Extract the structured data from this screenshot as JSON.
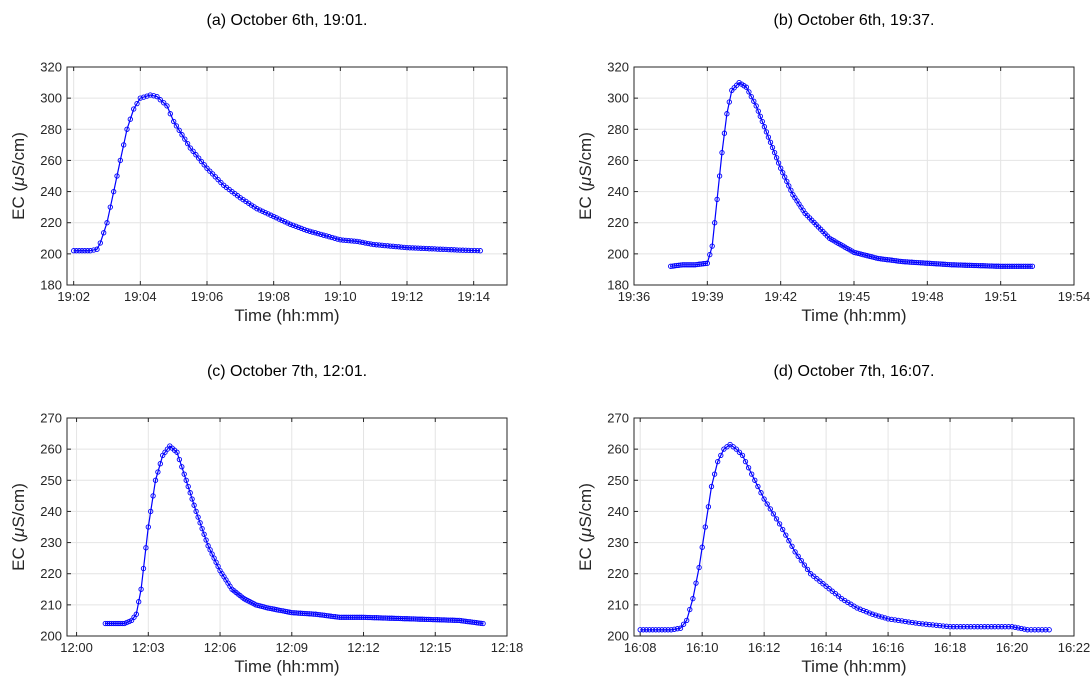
{
  "figure": {
    "series_color": "#0000ff",
    "xlabel": "Time (hh:mm)",
    "ylabel_prefix": "EC (",
    "ylabel_mu": "μ",
    "ylabel_suffix": "S/cm)"
  },
  "chart_data": [
    {
      "type": "line",
      "title": "(a) October 6th, 19:01.",
      "xlabel": "Time (hh:mm)",
      "ylabel": "EC (μS/cm)",
      "marker": "circle",
      "marker_density": "dense",
      "xlim": [
        "19:01.8",
        "19:15"
      ],
      "ylim": [
        180,
        320
      ],
      "xticks": [
        "19:02",
        "19:04",
        "19:06",
        "19:08",
        "19:10",
        "19:12",
        "19:14"
      ],
      "yticks": [
        180,
        200,
        220,
        240,
        260,
        280,
        300,
        320
      ],
      "grid": true,
      "series": [
        {
          "x": [
            "19:02.0",
            "19:02.5",
            "19:02.7",
            "19:02.8",
            "19:03.0",
            "19:03.2",
            "19:03.4",
            "19:03.6",
            "19:03.8",
            "19:04.0",
            "19:04.3",
            "19:04.5",
            "19:04.8",
            "19:05.0",
            "19:05.5",
            "19:06.0",
            "19:06.5",
            "19:07.0",
            "19:07.5",
            "19:08.0",
            "19:08.5",
            "19:09.0",
            "19:09.5",
            "19:10.0",
            "19:10.5",
            "19:11.0",
            "19:11.5",
            "19:12.0",
            "19:12.5",
            "19:13.0",
            "19:13.5",
            "19:14.2"
          ],
          "y": [
            202,
            202,
            203,
            207,
            220,
            240,
            260,
            280,
            293,
            300,
            302,
            301,
            295,
            285,
            268,
            255,
            244,
            236,
            229,
            224,
            219,
            215,
            212,
            209,
            208,
            206,
            205,
            204,
            203.5,
            203,
            202.5,
            202
          ]
        }
      ]
    },
    {
      "type": "line",
      "title": "(b) October 6th, 19:37.",
      "xlabel": "Time (hh:mm)",
      "ylabel": "EC (μS/cm)",
      "marker": "circle",
      "marker_density": "dense",
      "xlim": [
        "19:36",
        "19:54"
      ],
      "ylim": [
        180,
        320
      ],
      "xticks": [
        "19:36",
        "19:39",
        "19:42",
        "19:45",
        "19:48",
        "19:51",
        "19:54"
      ],
      "yticks": [
        180,
        200,
        220,
        240,
        260,
        280,
        300,
        320
      ],
      "grid": true,
      "series": [
        {
          "x": [
            "19:37.5",
            "19:38.0",
            "19:38.5",
            "19:39.0",
            "19:39.2",
            "19:39.4",
            "19:39.6",
            "19:39.8",
            "19:40.0",
            "19:40.3",
            "19:40.6",
            "19:41.0",
            "19:41.5",
            "19:42.0",
            "19:42.5",
            "19:43.0",
            "19:44.0",
            "19:45.0",
            "19:46.0",
            "19:47.0",
            "19:48.0",
            "19:49.0",
            "19:50.0",
            "19:51.0",
            "19:52.3"
          ],
          "y": [
            192,
            193,
            193,
            194,
            205,
            235,
            265,
            290,
            305,
            310,
            307,
            295,
            275,
            255,
            238,
            226,
            210,
            201,
            197,
            195,
            194,
            193,
            192.5,
            192,
            192
          ]
        }
      ]
    },
    {
      "type": "line",
      "title": "(c) October 7th, 12:01.",
      "xlabel": "Time (hh:mm)",
      "ylabel": "EC (μS/cm)",
      "marker": "circle",
      "marker_density": "dense",
      "xlim": [
        "11:59.6",
        "12:18"
      ],
      "ylim": [
        200,
        270
      ],
      "xticks": [
        "12:00",
        "12:03",
        "12:06",
        "12:09",
        "12:12",
        "12:15",
        "12:18"
      ],
      "yticks": [
        200,
        210,
        220,
        230,
        240,
        250,
        260,
        270
      ],
      "grid": true,
      "series": [
        {
          "x": [
            "12:01.2",
            "12:02.0",
            "12:02.3",
            "12:02.5",
            "12:02.7",
            "12:03.0",
            "12:03.3",
            "12:03.6",
            "12:03.9",
            "12:04.2",
            "12:04.5",
            "12:05.0",
            "12:05.5",
            "12:06.0",
            "12:06.5",
            "12:07.0",
            "12:07.5",
            "12:08.0",
            "12:09.0",
            "12:10.0",
            "12:11.0",
            "12:12.0",
            "12:14.0",
            "12:16.0",
            "12:17.0"
          ],
          "y": [
            204,
            204,
            205,
            207,
            215,
            235,
            250,
            258,
            261,
            259,
            252,
            240,
            229,
            221,
            215,
            212,
            210,
            209,
            207.5,
            207,
            206,
            206,
            205.5,
            205,
            204
          ]
        }
      ]
    },
    {
      "type": "line",
      "title": "(d) October 7th, 16:07.",
      "xlabel": "Time (hh:mm)",
      "ylabel": "EC (μS/cm)",
      "marker": "circle",
      "marker_density": "sparse",
      "xlim": [
        "16:07.8",
        "16:22"
      ],
      "ylim": [
        200,
        270
      ],
      "xticks": [
        "16:08",
        "16:10",
        "16:12",
        "16:14",
        "16:16",
        "16:18",
        "16:20",
        "16:22"
      ],
      "yticks": [
        200,
        210,
        220,
        230,
        240,
        250,
        260,
        270
      ],
      "grid": true,
      "series": [
        {
          "x": [
            "16:08.0",
            "16:08.5",
            "16:09.0",
            "16:09.3",
            "16:09.5",
            "16:09.7",
            "16:09.9",
            "16:10.1",
            "16:10.3",
            "16:10.5",
            "16:10.7",
            "16:10.9",
            "16:11.1",
            "16:11.3",
            "16:11.6",
            "16:12.0",
            "16:12.5",
            "16:13.0",
            "16:13.5",
            "16:14.0",
            "16:14.5",
            "16:15.0",
            "16:15.5",
            "16:16.0",
            "16:17.0",
            "16:18.0",
            "16:19.0",
            "16:20.0",
            "16:20.5",
            "16:21.2"
          ],
          "y": [
            202,
            202,
            202,
            202.5,
            205,
            212,
            222,
            235,
            248,
            256,
            260,
            261.5,
            260,
            258,
            252,
            244,
            236,
            227,
            220,
            216,
            212,
            209,
            207,
            205.5,
            204,
            203,
            203,
            203,
            202,
            202
          ]
        }
      ]
    }
  ]
}
